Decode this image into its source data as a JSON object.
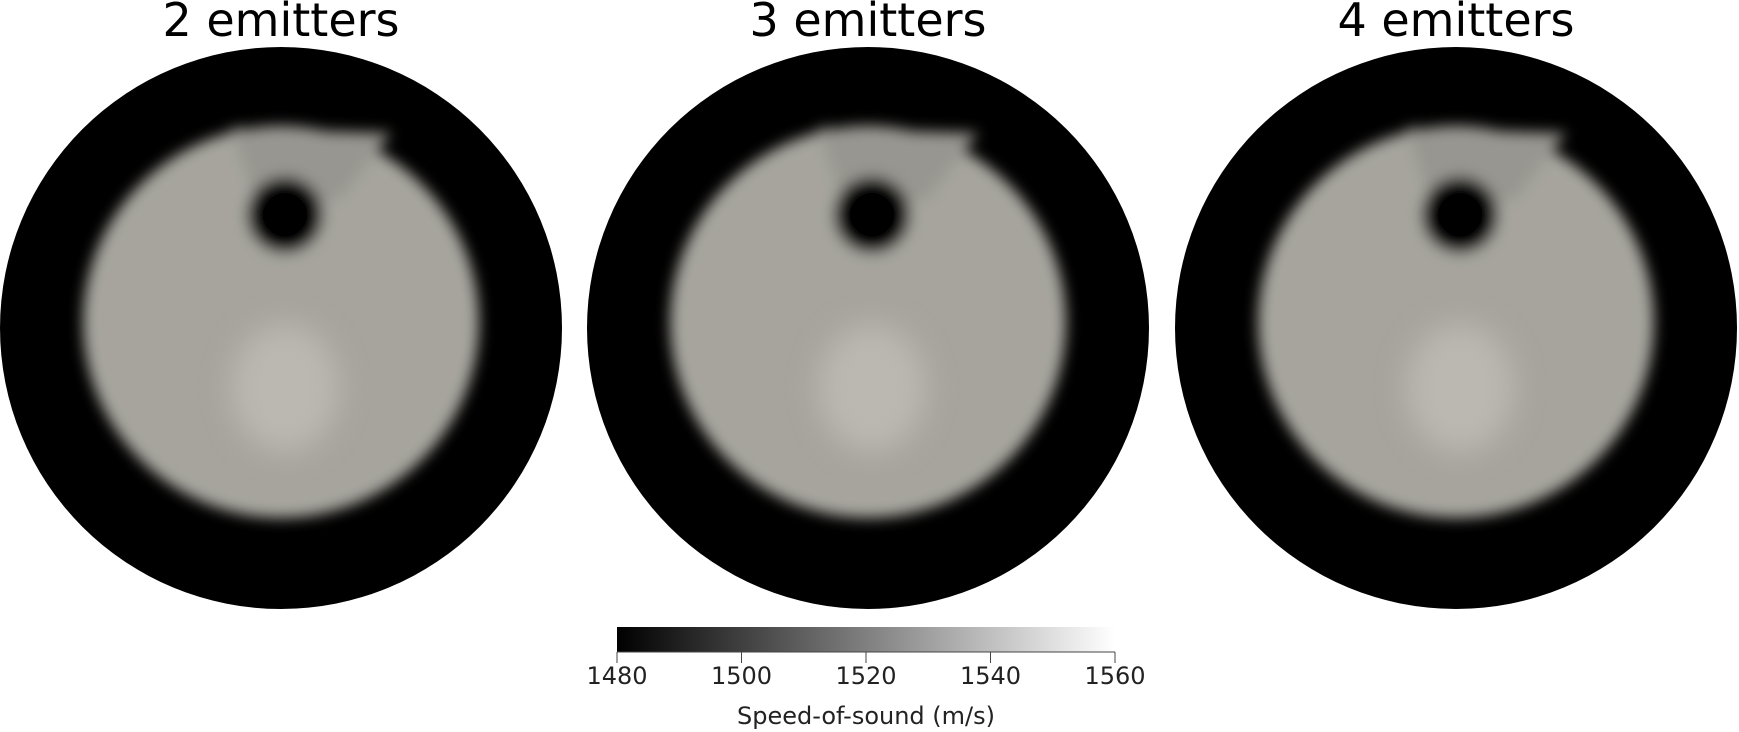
{
  "panels": [
    {
      "title": "2 emitters"
    },
    {
      "title": "3 emitters"
    },
    {
      "title": "4 emitters"
    }
  ],
  "colorbar": {
    "lim": [
      1480,
      1560
    ],
    "ticks": [
      1480,
      1500,
      1520,
      1540,
      1560
    ],
    "label": "Speed-of-sound (m/s)"
  }
}
